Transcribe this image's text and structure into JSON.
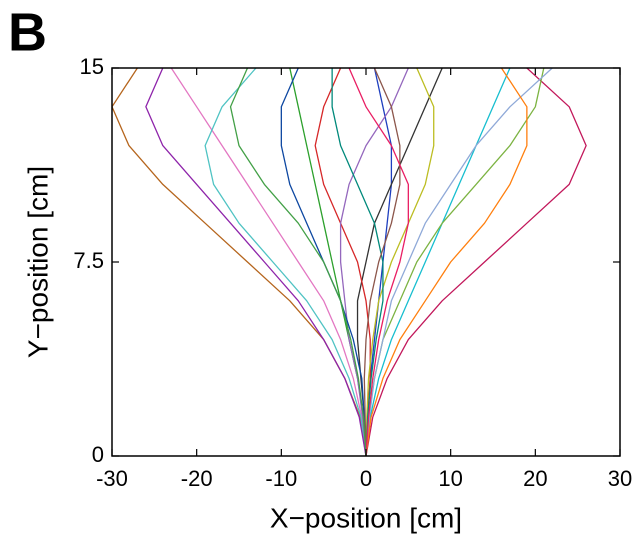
{
  "panel_label": "B",
  "chart_data": {
    "type": "line",
    "xlabel": "X−position [cm]",
    "ylabel": "Y−position [cm]",
    "xlim": [
      -30,
      30
    ],
    "ylim": [
      0,
      15
    ],
    "xticks": [
      -30,
      -20,
      -10,
      0,
      10,
      20,
      30
    ],
    "yticks": [
      0,
      7.5,
      15
    ],
    "grid": false,
    "series": [
      {
        "color": "#c2185b",
        "x": [
          0,
          0.8,
          2.5,
          5,
          9,
          14,
          19,
          24,
          26,
          24,
          19
        ],
        "values": [
          0,
          1.5,
          3,
          4.5,
          6,
          7.5,
          9,
          10.5,
          12,
          13.5,
          15
        ]
      },
      {
        "color": "#b5651d",
        "x": [
          0,
          -0.7,
          -2.5,
          -5,
          -9,
          -14,
          -19,
          -24,
          -28,
          -30,
          -27
        ],
        "values": [
          0,
          1.5,
          3,
          4.5,
          6,
          7.5,
          9,
          10.5,
          12,
          13.5,
          15
        ]
      },
      {
        "color": "#1f3fbf",
        "x": [
          0,
          0.2,
          0.5,
          1,
          1.5,
          2,
          2.5,
          3,
          3,
          2,
          1
        ],
        "values": [
          0,
          1.5,
          3,
          4.5,
          6,
          7.5,
          9,
          10.5,
          12,
          13.5,
          15
        ]
      },
      {
        "color": "#2ca02c",
        "x": [
          0,
          -0.3,
          -1,
          -2,
          -3,
          -4,
          -5,
          -6,
          -7,
          -8,
          -9
        ],
        "values": [
          0,
          1.5,
          3,
          4.5,
          6,
          7.5,
          9,
          10.5,
          12,
          13.5,
          15
        ]
      },
      {
        "color": "#17becf",
        "x": [
          0,
          0.5,
          1.5,
          3,
          5,
          7,
          9,
          11,
          13,
          15,
          17
        ],
        "values": [
          0,
          1.5,
          3,
          4.5,
          6,
          7.5,
          9,
          10.5,
          12,
          13.5,
          15
        ]
      },
      {
        "color": "#e377c2",
        "x": [
          0,
          -0.5,
          -1.5,
          -3,
          -5,
          -8,
          -11,
          -14,
          -17,
          -20,
          -23
        ],
        "values": [
          0,
          1.5,
          3,
          4.5,
          6,
          7.5,
          9,
          10.5,
          12,
          13.5,
          15
        ]
      },
      {
        "color": "#7cb342",
        "x": [
          0,
          0.3,
          1,
          2,
          4,
          6,
          9,
          13,
          17,
          20,
          21
        ],
        "values": [
          0,
          1.5,
          3,
          4.5,
          6,
          7.5,
          9,
          10.5,
          12,
          13.5,
          15
        ]
      },
      {
        "color": "#333333",
        "x": [
          0,
          -0.2,
          -0.6,
          -1,
          -1,
          0,
          1,
          3,
          5,
          7,
          9
        ],
        "values": [
          0,
          1.5,
          3,
          4.5,
          6,
          7.5,
          9,
          10.5,
          12,
          13.5,
          15
        ]
      },
      {
        "color": "#d62728",
        "x": [
          0,
          0.2,
          0.5,
          0.5,
          0,
          -1,
          -3,
          -5,
          -6,
          -5,
          -3
        ],
        "values": [
          0,
          1.5,
          3,
          4.5,
          6,
          7.5,
          9,
          10.5,
          12,
          13.5,
          15
        ]
      },
      {
        "color": "#4fc3c3",
        "x": [
          0,
          -0.6,
          -2,
          -4,
          -7,
          -11,
          -15,
          -18,
          -19,
          -17,
          -13
        ],
        "values": [
          0,
          1.5,
          3,
          4.5,
          6,
          7.5,
          9,
          10.5,
          12,
          13.5,
          15
        ]
      },
      {
        "color": "#8fa9d8",
        "x": [
          0,
          0.4,
          1,
          2,
          3,
          5,
          7,
          10,
          13,
          17,
          22
        ],
        "values": [
          0,
          1.5,
          3,
          4.5,
          6,
          7.5,
          9,
          10.5,
          12,
          13.5,
          15
        ]
      },
      {
        "color": "#9467bd",
        "x": [
          0,
          -0.4,
          -1,
          -2,
          -2.5,
          -3,
          -3,
          -2,
          0,
          3,
          5
        ],
        "values": [
          0,
          1.5,
          3,
          4.5,
          6,
          7.5,
          9,
          10.5,
          12,
          13.5,
          15
        ]
      },
      {
        "color": "#bcbd22",
        "x": [
          0,
          0.1,
          0.3,
          0.8,
          1.5,
          3,
          5,
          7,
          8,
          8,
          6
        ],
        "values": [
          0,
          1.5,
          3,
          4.5,
          6,
          7.5,
          9,
          10.5,
          12,
          13.5,
          15
        ]
      },
      {
        "color": "#0d47a1",
        "x": [
          0,
          -0.2,
          -0.5,
          -1.5,
          -3,
          -5,
          -7,
          -9,
          -10,
          -10,
          -8
        ],
        "values": [
          0,
          1.5,
          3,
          4.5,
          6,
          7.5,
          9,
          10.5,
          12,
          13.5,
          15
        ]
      },
      {
        "color": "#ff7f0e",
        "x": [
          0,
          0.6,
          2,
          4,
          7,
          10,
          14,
          17,
          19,
          19,
          16
        ],
        "values": [
          0,
          1.5,
          3,
          4.5,
          6,
          7.5,
          9,
          10.5,
          12,
          13.5,
          15
        ]
      },
      {
        "color": "#8e24aa",
        "x": [
          0,
          -0.8,
          -2.5,
          -5,
          -8,
          -12,
          -16,
          -20,
          -24,
          -26,
          -24
        ],
        "values": [
          0,
          1.5,
          3,
          4.5,
          6,
          7.5,
          9,
          10.5,
          12,
          13.5,
          15
        ]
      },
      {
        "color": "#00897b",
        "x": [
          0,
          0.2,
          0.6,
          1.2,
          2,
          2,
          1,
          -1,
          -3,
          -4,
          -4
        ],
        "values": [
          0,
          1.5,
          3,
          4.5,
          6,
          7.5,
          9,
          10.5,
          12,
          13.5,
          15
        ]
      },
      {
        "color": "#8c564b",
        "x": [
          0,
          -0.1,
          -0.2,
          0,
          0.5,
          1.5,
          3,
          4,
          4,
          3,
          1
        ],
        "values": [
          0,
          1.5,
          3,
          4.5,
          6,
          7.5,
          9,
          10.5,
          12,
          13.5,
          15
        ]
      },
      {
        "color": "#e91e63",
        "x": [
          0,
          0.3,
          0.8,
          1.5,
          2.5,
          4,
          5,
          5,
          3,
          0,
          -2
        ],
        "values": [
          0,
          1.5,
          3,
          4.5,
          6,
          7.5,
          9,
          10.5,
          12,
          13.5,
          15
        ]
      },
      {
        "color": "#43a047",
        "x": [
          0,
          -0.3,
          -0.9,
          -1.8,
          -3,
          -5,
          -8,
          -12,
          -15,
          -16,
          -14
        ],
        "values": [
          0,
          1.5,
          3,
          4.5,
          6,
          7.5,
          9,
          10.5,
          12,
          13.5,
          15
        ]
      }
    ]
  }
}
